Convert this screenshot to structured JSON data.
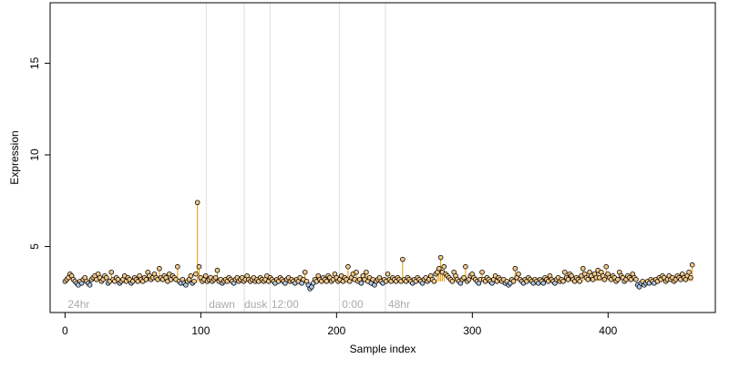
{
  "chart_data": {
    "type": "scatter",
    "title": "",
    "xlabel": "Sample index",
    "ylabel": "Expression",
    "xlim": [
      -11,
      479
    ],
    "ylim": [
      1.4,
      18.3
    ],
    "x_ticks": [
      0,
      100,
      200,
      300,
      400
    ],
    "y_ticks": [
      5,
      10,
      15
    ],
    "baseline": 3.1,
    "grid": false,
    "legend": "none",
    "colors": {
      "above_fill": "#f5c98a",
      "below_fill": "#aec8e6",
      "segment": "#e69500",
      "vline": "#dddddd",
      "annotation": "#aaaaaa"
    },
    "vlines": [
      104,
      132,
      151,
      202,
      236
    ],
    "annotations": [
      {
        "x": 2,
        "label": "24hr"
      },
      {
        "x": 106,
        "label": "dawn"
      },
      {
        "x": 132,
        "label": "dusk"
      },
      {
        "x": 152,
        "label": "12:00"
      },
      {
        "x": 204,
        "label": "0:00"
      },
      {
        "x": 238,
        "label": "48hr"
      }
    ],
    "y": [
      3.1,
      3.2,
      3.3,
      3.5,
      3.4,
      3.2,
      3.1,
      3.0,
      2.9,
      3.1,
      3.0,
      3.2,
      3.3,
      3.1,
      3.0,
      2.9,
      3.2,
      3.3,
      3.4,
      3.2,
      3.5,
      3.3,
      3.1,
      3.2,
      3.4,
      3.3,
      3.0,
      3.1,
      3.6,
      3.2,
      3.1,
      3.3,
      3.2,
      3.0,
      3.1,
      3.2,
      3.4,
      3.1,
      3.3,
      3.2,
      3.0,
      3.1,
      3.3,
      3.2,
      3.1,
      3.4,
      3.2,
      3.1,
      3.3,
      3.2,
      3.6,
      3.4,
      3.2,
      3.3,
      3.5,
      3.3,
      3.2,
      3.8,
      3.3,
      3.2,
      3.4,
      3.3,
      3.1,
      3.5,
      3.2,
      3.4,
      3.3,
      3.2,
      3.9,
      3.1,
      3.0,
      3.2,
      3.0,
      2.9,
      3.1,
      3.2,
      3.4,
      3.0,
      3.1,
      3.5,
      7.4,
      3.9,
      3.3,
      3.1,
      3.2,
      3.4,
      3.1,
      3.2,
      3.3,
      3.1,
      3.2,
      3.3,
      3.7,
      3.1,
      3.2,
      3.0,
      3.1,
      3.2,
      3.1,
      3.3,
      3.2,
      3.1,
      3.0,
      3.2,
      3.3,
      3.1,
      3.2,
      3.3,
      3.1,
      3.2,
      3.4,
      3.2,
      3.1,
      3.2,
      3.3,
      3.1,
      3.2,
      3.1,
      3.3,
      3.2,
      3.1,
      3.2,
      3.4,
      3.1,
      3.3,
      3.2,
      3.1,
      3.0,
      3.2,
      3.1,
      3.3,
      3.2,
      3.1,
      3.0,
      3.2,
      3.3,
      3.1,
      3.2,
      3.1,
      3.0,
      3.2,
      3.1,
      3.3,
      3.0,
      3.2,
      3.6,
      3.1,
      2.9,
      2.7,
      2.8,
      3.0,
      3.2,
      3.1,
      3.4,
      3.2,
      3.1,
      3.3,
      3.2,
      3.1,
      3.4,
      3.3,
      3.1,
      3.2,
      3.5,
      3.3,
      3.1,
      3.2,
      3.4,
      3.1,
      3.3,
      3.2,
      3.9,
      3.1,
      3.3,
      3.5,
      3.2,
      3.6,
      3.1,
      3.2,
      3.0,
      3.4,
      3.2,
      3.6,
      3.1,
      3.3,
      3.0,
      3.2,
      2.9,
      3.1,
      3.2,
      3.3,
      3.1,
      3.0,
      3.2,
      3.1,
      3.5,
      3.2,
      3.1,
      3.3,
      3.2,
      3.1,
      3.3,
      3.2,
      3.1,
      4.3,
      3.2,
      3.1,
      3.3,
      3.2,
      3.1,
      3.0,
      3.2,
      3.1,
      3.3,
      3.2,
      3.1,
      3.0,
      3.2,
      3.3,
      3.1,
      3.2,
      3.4,
      3.2,
      3.1,
      3.5,
      3.6,
      3.8,
      4.4,
      3.6,
      3.9,
      3.5,
      3.4,
      3.3,
      3.2,
      3.1,
      3.6,
      3.4,
      3.2,
      3.1,
      3.0,
      3.2,
      3.3,
      3.9,
      3.1,
      3.2,
      3.4,
      3.5,
      3.3,
      3.2,
      3.1,
      3.0,
      3.2,
      3.6,
      3.2,
      3.1,
      3.3,
      3.2,
      3.1,
      3.0,
      3.2,
      3.4,
      3.1,
      3.3,
      3.2,
      3.1,
      3.2,
      3.0,
      3.1,
      2.9,
      3.0,
      3.2,
      3.1,
      3.8,
      3.3,
      3.5,
      3.2,
      3.1,
      3.0,
      3.2,
      3.1,
      3.3,
      3.2,
      3.1,
      3.0,
      3.2,
      3.1,
      3.0,
      3.2,
      3.1,
      3.0,
      3.3,
      3.2,
      3.1,
      3.4,
      3.2,
      3.1,
      3.0,
      3.2,
      3.3,
      3.1,
      3.2,
      3.1,
      3.6,
      3.3,
      3.2,
      3.5,
      3.4,
      3.2,
      3.1,
      3.3,
      3.2,
      3.1,
      3.4,
      3.8,
      3.5,
      3.3,
      3.2,
      3.6,
      3.4,
      3.2,
      3.5,
      3.3,
      3.7,
      3.3,
      3.6,
      3.4,
      3.2,
      3.9,
      3.5,
      3.3,
      3.2,
      3.4,
      3.3,
      3.1,
      3.2,
      3.6,
      3.4,
      3.3,
      3.1,
      3.2,
      3.4,
      3.3,
      3.2,
      3.5,
      3.3,
      3.2,
      2.9,
      2.8,
      3.0,
      3.1,
      2.9,
      3.0,
      3.1,
      3.0,
      3.2,
      3.1,
      3.0,
      3.2,
      3.1,
      3.3,
      3.2,
      3.4,
      3.3,
      3.1,
      3.2,
      3.4,
      3.2,
      3.3,
      3.1,
      3.2,
      3.4,
      3.3,
      3.2,
      3.5,
      3.3,
      3.2,
      3.4,
      3.6,
      3.3,
      4.0
    ]
  }
}
